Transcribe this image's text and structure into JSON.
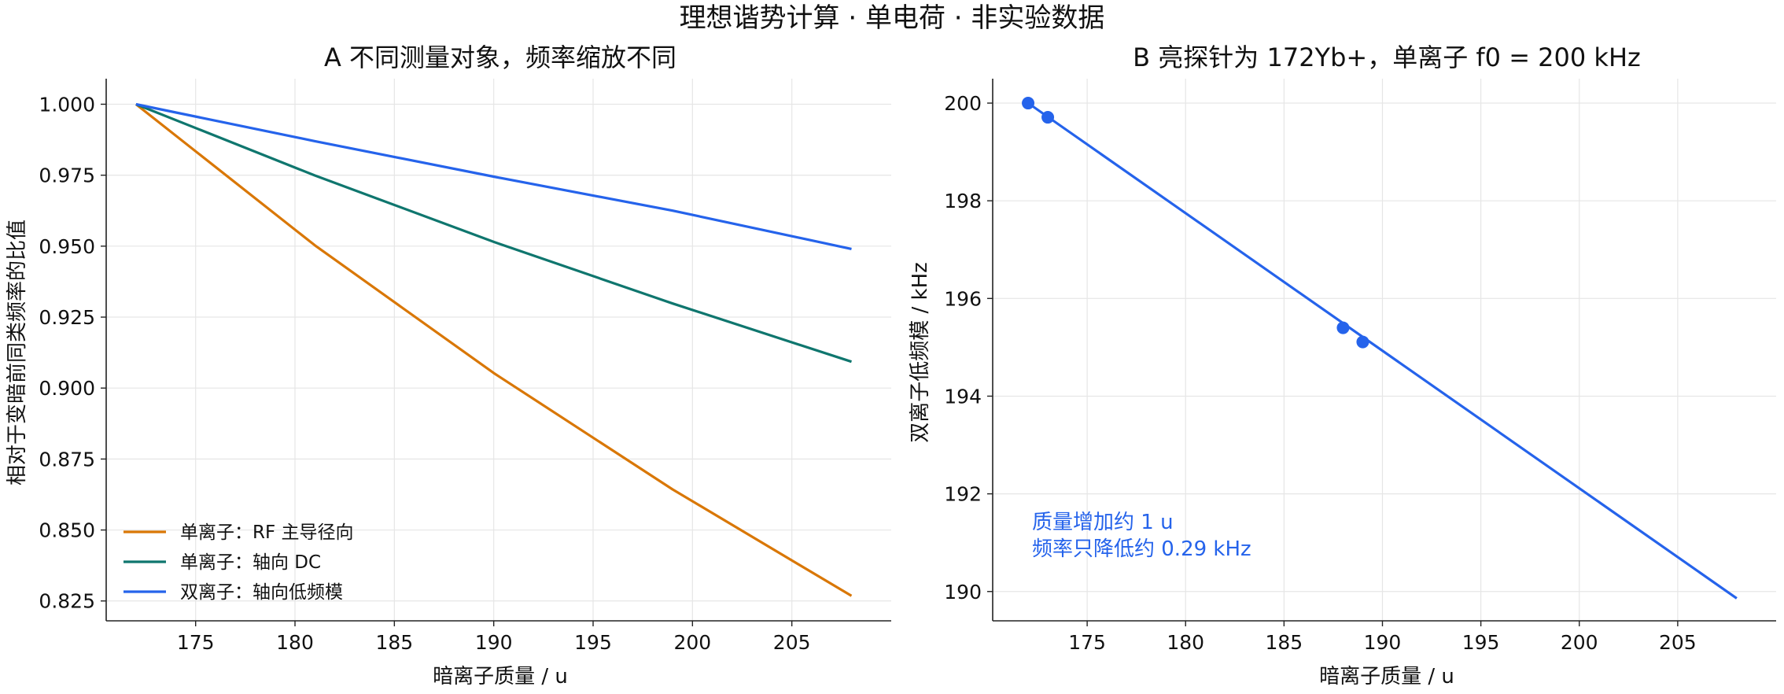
{
  "figure": {
    "suptitle": "理想谐势计算 · 单电荷 · 非实验数据"
  },
  "chart_data": [
    {
      "type": "line",
      "title": "A  不同测量对象，频率缩放不同",
      "xlabel": "暗离子质量 / u",
      "ylabel": "相对于变暗前同类频率的比值",
      "xlim": [
        170.5,
        210
      ],
      "ylim": [
        0.818,
        1.009
      ],
      "xticks": [
        175,
        180,
        185,
        190,
        195,
        200,
        205
      ],
      "yticks": [
        0.825,
        0.85,
        0.875,
        0.9,
        0.925,
        0.95,
        0.975,
        1.0
      ],
      "ytick_labels": [
        "0.825",
        "0.850",
        "0.875",
        "0.900",
        "0.925",
        "0.950",
        "0.975",
        "1.000"
      ],
      "grid": true,
      "legend_position": "lower-left",
      "series": [
        {
          "name": "单离子：RF 主导径向",
          "color": "#d97706",
          "x": [
            172,
            181,
            190,
            199,
            208
          ],
          "y": [
            1.0,
            0.9503,
            0.9053,
            0.8643,
            0.8268
          ]
        },
        {
          "name": "单离子：轴向 DC",
          "color": "#0f766e",
          "x": [
            172,
            181,
            190,
            199,
            208
          ],
          "y": [
            1.0,
            0.9749,
            0.9515,
            0.9298,
            0.9093
          ]
        },
        {
          "name": "双离子：轴向低频模",
          "color": "#2563eb",
          "x": [
            172,
            181,
            190,
            199,
            208
          ],
          "y": [
            1.0,
            0.987,
            0.9745,
            0.9625,
            0.949
          ]
        }
      ]
    },
    {
      "type": "line",
      "title": "B  亮探针为 172Yb+，单离子 f0 = 200 kHz",
      "xlabel": "暗离子质量 / u",
      "ylabel": "双离子低频模 / kHz",
      "xlim": [
        170.2,
        210
      ],
      "ylim": [
        189.4,
        200.5
      ],
      "xticks": [
        175,
        180,
        185,
        190,
        195,
        200,
        205
      ],
      "yticks": [
        190,
        192,
        194,
        196,
        198,
        200
      ],
      "grid": true,
      "annotation": {
        "line1": "质量增加约 1 u",
        "line2": "频率只降低约 0.29 kHz",
        "color": "#2563eb"
      },
      "series": [
        {
          "color": "#2563eb",
          "x": [
            172,
            208
          ],
          "y": [
            200.0,
            189.86
          ]
        }
      ],
      "markers": {
        "color": "#2563eb",
        "points": [
          {
            "x": 172,
            "y": 200.0
          },
          {
            "x": 173,
            "y": 199.71
          },
          {
            "x": 188,
            "y": 195.4
          },
          {
            "x": 189,
            "y": 195.11
          }
        ]
      }
    }
  ]
}
